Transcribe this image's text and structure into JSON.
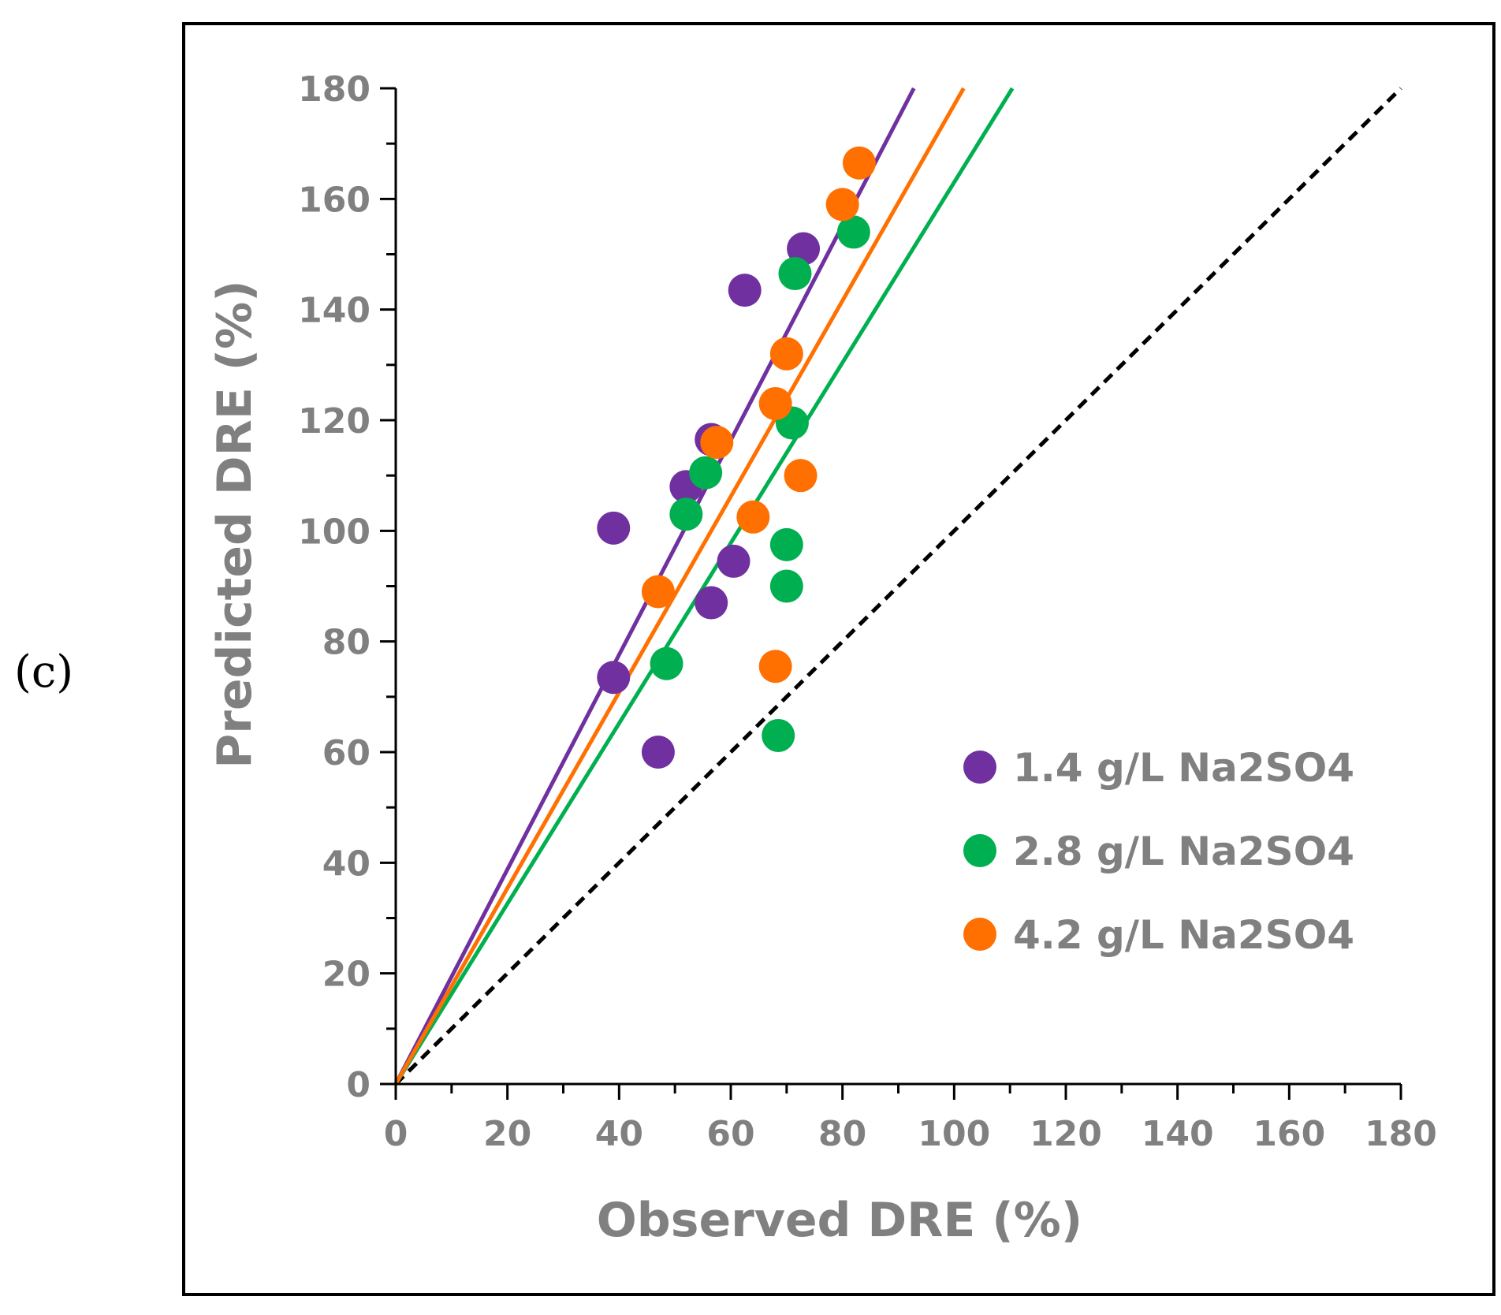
{
  "panel_label": "(c)",
  "chart_data": {
    "type": "scatter",
    "xlabel": "Observed DRE (%)",
    "ylabel": "Predicted DRE (%)",
    "xlim": [
      0,
      180
    ],
    "ylim": [
      0,
      180
    ],
    "x_ticks": [
      "0",
      "20",
      "40",
      "60",
      "80",
      "100",
      "120",
      "140",
      "160",
      "180"
    ],
    "y_ticks": [
      "0",
      "20",
      "40",
      "60",
      "80",
      "100",
      "120",
      "140",
      "160",
      "180"
    ],
    "grid": false,
    "legend_position": "bottom-right",
    "series": [
      {
        "name": "1.4 g/L Na2SO4",
        "color": "#7030A0",
        "points": [
          {
            "x": 39,
            "y": 100.5
          },
          {
            "x": 39,
            "y": 73.5
          },
          {
            "x": 47,
            "y": 60
          },
          {
            "x": 52,
            "y": 108
          },
          {
            "x": 56.5,
            "y": 116.5
          },
          {
            "x": 56.5,
            "y": 87
          },
          {
            "x": 60.5,
            "y": 94.5
          },
          {
            "x": 62.5,
            "y": 143.5
          },
          {
            "x": 73,
            "y": 151
          }
        ],
        "trendline_slope": 1.94
      },
      {
        "name": "2.8 g/L Na2SO4",
        "color": "#00B050",
        "points": [
          {
            "x": 48.5,
            "y": 76
          },
          {
            "x": 52,
            "y": 103
          },
          {
            "x": 55.5,
            "y": 110.5
          },
          {
            "x": 68.5,
            "y": 63
          },
          {
            "x": 70,
            "y": 97.5
          },
          {
            "x": 70,
            "y": 90
          },
          {
            "x": 71,
            "y": 119.5
          },
          {
            "x": 71.5,
            "y": 146.5
          },
          {
            "x": 82,
            "y": 154
          }
        ],
        "trendline_slope": 1.63
      },
      {
        "name": "4.2 g/L Na2SO4",
        "color": "#FF7000",
        "points": [
          {
            "x": 47,
            "y": 89
          },
          {
            "x": 57.5,
            "y": 116
          },
          {
            "x": 64,
            "y": 102.5
          },
          {
            "x": 68,
            "y": 123
          },
          {
            "x": 68,
            "y": 75.5
          },
          {
            "x": 70,
            "y": 132
          },
          {
            "x": 72.5,
            "y": 110
          },
          {
            "x": 80,
            "y": 159
          },
          {
            "x": 83,
            "y": 166.5
          }
        ],
        "trendline_slope": 1.77
      }
    ],
    "reference_line": {
      "name": "1:1 line",
      "slope": 1,
      "style": "dashed",
      "color": "#000000"
    }
  }
}
